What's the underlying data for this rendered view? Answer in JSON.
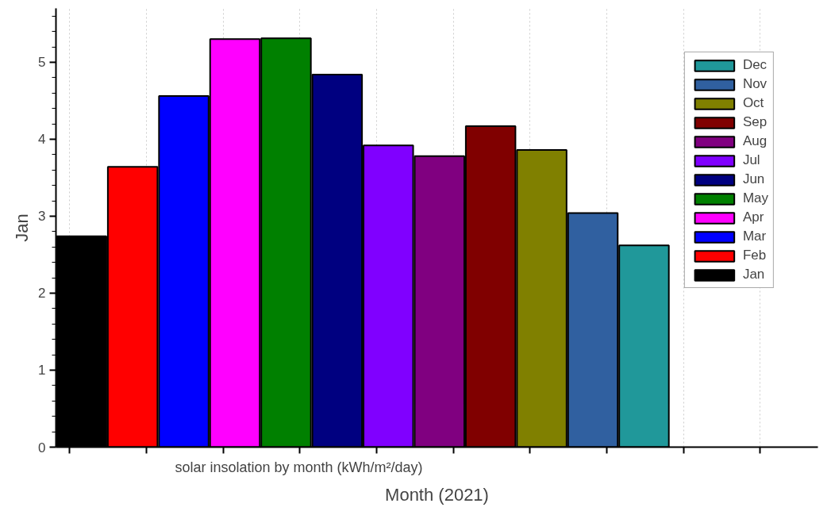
{
  "chart_data": {
    "type": "bar",
    "stacked": true,
    "xlabel": "Month (2021)",
    "ylabel": "Jan",
    "annotations": [
      "solar insolation by month (kWh/m²/day)"
    ],
    "categories": [
      null,
      null,
      null,
      null,
      null,
      null,
      null,
      null,
      null,
      null,
      null,
      null
    ],
    "series": [
      {
        "name": "Jan",
        "color": "#000000",
        "values": [
          2.74,
          null,
          null,
          null,
          null,
          null,
          null,
          null,
          null,
          null,
          null,
          null
        ]
      },
      {
        "name": "Feb",
        "color": "#ff0000",
        "values": [
          null,
          3.64,
          null,
          null,
          null,
          null,
          null,
          null,
          null,
          null,
          null,
          null
        ]
      },
      {
        "name": "Mar",
        "color": "#0000ff",
        "values": [
          null,
          null,
          4.56,
          null,
          null,
          null,
          null,
          null,
          null,
          null,
          null,
          null
        ]
      },
      {
        "name": "Apr",
        "color": "#ff00ff",
        "values": [
          null,
          null,
          null,
          5.3,
          null,
          null,
          null,
          null,
          null,
          null,
          null,
          null
        ]
      },
      {
        "name": "May",
        "color": "#008000",
        "values": [
          null,
          null,
          null,
          null,
          5.31,
          null,
          null,
          null,
          null,
          null,
          null,
          null
        ]
      },
      {
        "name": "Jun",
        "color": "#000080",
        "values": [
          null,
          null,
          null,
          null,
          null,
          4.84,
          null,
          null,
          null,
          null,
          null,
          null
        ]
      },
      {
        "name": "Jul",
        "color": "#8000ff",
        "values": [
          null,
          null,
          null,
          null,
          null,
          null,
          3.92,
          null,
          null,
          null,
          null,
          null
        ]
      },
      {
        "name": "Aug",
        "color": "#800080",
        "values": [
          null,
          null,
          null,
          null,
          null,
          null,
          null,
          3.78,
          null,
          null,
          null,
          null
        ]
      },
      {
        "name": "Sep",
        "color": "#800000",
        "values": [
          null,
          null,
          null,
          null,
          null,
          null,
          null,
          null,
          4.17,
          null,
          null,
          null
        ]
      },
      {
        "name": "Oct",
        "color": "#808000",
        "values": [
          null,
          null,
          null,
          null,
          null,
          null,
          null,
          null,
          null,
          3.86,
          null,
          null
        ]
      },
      {
        "name": "Nov",
        "color": "#3060a0",
        "values": [
          null,
          null,
          null,
          null,
          null,
          null,
          null,
          null,
          null,
          null,
          3.04,
          null
        ]
      },
      {
        "name": "Dec",
        "color": "#20989a",
        "values": [
          null,
          null,
          null,
          null,
          null,
          null,
          null,
          null,
          null,
          null,
          null,
          2.62
        ]
      }
    ],
    "ylim": [
      0,
      5.7
    ],
    "yticks": [
      0,
      1,
      2,
      3,
      4,
      5
    ],
    "grid": "x",
    "legend": "top right"
  }
}
